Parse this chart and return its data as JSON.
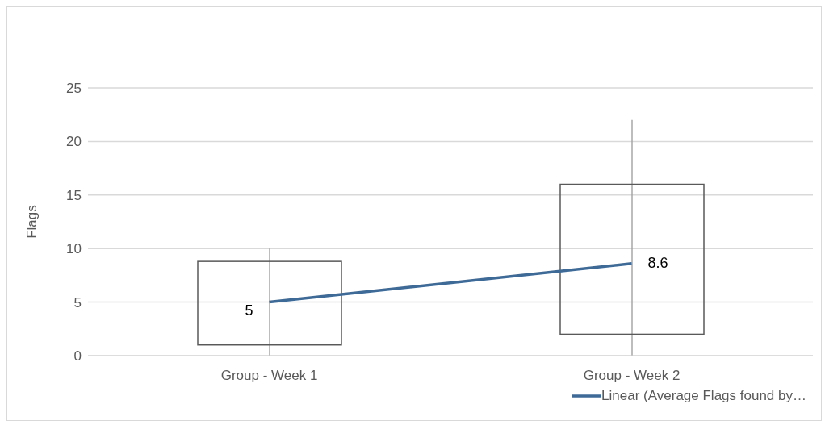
{
  "chart_data": {
    "type": "candlestick",
    "ylabel": "Flags",
    "categories": [
      "Group - Week 1",
      "Group - Week 2"
    ],
    "ohlc": [
      [
        1,
        10,
        0,
        8.8
      ],
      [
        2,
        22,
        0,
        16
      ]
    ],
    "series": [
      {
        "type": "line",
        "name": "Linear (Average Flags found by…",
        "color": "#3e6a97",
        "values": [
          5,
          8.6
        ],
        "value_labels": [
          "5",
          "8.6"
        ]
      }
    ],
    "ylim": [
      0,
      25
    ],
    "yticks": [
      0,
      5,
      10,
      15,
      20,
      25
    ],
    "grid": "y",
    "legend": "bottom right"
  }
}
